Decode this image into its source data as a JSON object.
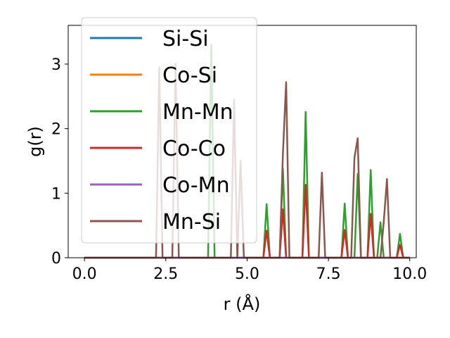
{
  "chart_data": {
    "type": "line",
    "title": "",
    "xlabel": "r (Å)",
    "ylabel": "g(r)",
    "xlim": [
      -0.5,
      10.2
    ],
    "ylim": [
      0,
      3.6
    ],
    "xticks": [
      0.0,
      2.5,
      5.0,
      7.5,
      10.0
    ],
    "xtick_labels": [
      "0.0",
      "2.5",
      "5.0",
      "7.5",
      "10.0"
    ],
    "yticks": [
      0,
      1,
      2,
      3
    ],
    "ytick_labels": [
      "0",
      "1",
      "2",
      "3"
    ],
    "grid": false,
    "legend_position": "upper-left",
    "series": [
      {
        "name": "Si-Si",
        "color": "#1f77b4",
        "x": [
          0,
          10.0
        ],
        "y": [
          0,
          0
        ]
      },
      {
        "name": "Co-Si",
        "color": "#ff7f0e",
        "x": [
          0,
          10.0
        ],
        "y": [
          0,
          0
        ]
      },
      {
        "name": "Mn-Mn",
        "color": "#2ca02c",
        "x": [
          0,
          3.8,
          3.9,
          4.0,
          5.5,
          5.6,
          5.7,
          6.0,
          6.1,
          6.2,
          6.7,
          6.8,
          6.9,
          7.9,
          8.0,
          8.1,
          8.3,
          8.4,
          8.5,
          8.7,
          8.8,
          8.9,
          9.0,
          9.1,
          9.2,
          9.6,
          9.7,
          9.8,
          10.0
        ],
        "y": [
          0,
          0,
          3.3,
          0,
          0,
          0.83,
          0,
          0,
          1.38,
          0,
          0,
          2.26,
          0,
          0,
          0.84,
          0,
          0,
          1.3,
          0,
          0,
          1.36,
          0,
          0,
          0.55,
          0,
          0,
          0.37,
          0,
          0
        ]
      },
      {
        "name": "Co-Co",
        "color": "#d62728",
        "x": [
          0,
          5.5,
          5.6,
          5.7,
          6.0,
          6.1,
          6.2,
          6.7,
          6.8,
          6.9,
          7.9,
          8.0,
          8.1,
          8.7,
          8.8,
          8.9,
          9.6,
          9.7,
          9.8,
          10.0
        ],
        "y": [
          0,
          0,
          0.42,
          0,
          0,
          0.75,
          0,
          0,
          1.13,
          0,
          0,
          0.43,
          0,
          0,
          0.68,
          0,
          0,
          0.2,
          0,
          0
        ]
      },
      {
        "name": "Co-Mn",
        "color": "#9467bd",
        "x": [
          0,
          10.0
        ],
        "y": [
          0,
          0
        ]
      },
      {
        "name": "Mn-Si",
        "color": "#8c564b",
        "x": [
          0,
          2.2,
          2.3,
          2.4,
          2.5,
          2.6,
          2.7,
          2.8,
          2.9,
          3.0,
          4.5,
          4.6,
          4.7,
          4.8,
          4.9,
          5.0,
          6.0,
          6.1,
          6.2,
          6.3,
          7.2,
          7.3,
          7.4,
          8.2,
          8.3,
          8.4,
          8.5,
          9.1,
          9.2,
          9.3,
          9.4,
          10.0
        ],
        "y": [
          0,
          0,
          2.95,
          0,
          0,
          0,
          0,
          3.0,
          0,
          0,
          0,
          2.45,
          0,
          1.5,
          0,
          0,
          0,
          1.6,
          2.72,
          0,
          0,
          1.32,
          0,
          0,
          1.55,
          1.85,
          0,
          0,
          0.55,
          1.22,
          0,
          0
        ]
      }
    ]
  }
}
